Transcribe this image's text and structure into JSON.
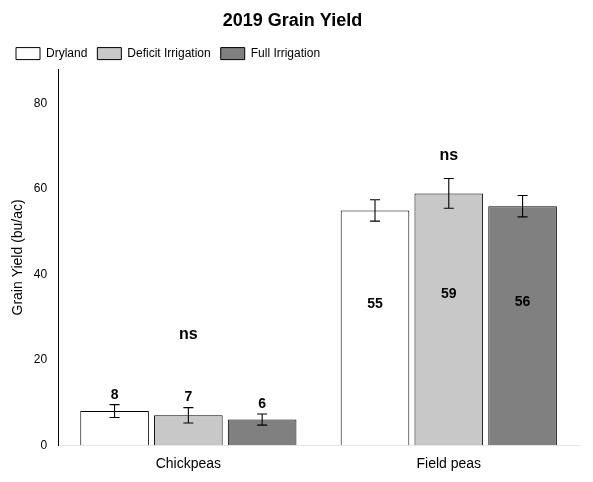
{
  "chart_data": {
    "type": "bar",
    "title": "2019 Grain Yield",
    "ylabel": "Grain Yield (bu/ac)",
    "categories": [
      "Chickpeas",
      "Field peas"
    ],
    "series": [
      {
        "name": "Dryland",
        "color": "#ffffff",
        "values": [
          8,
          55
        ],
        "errors": [
          1.5,
          2.5
        ]
      },
      {
        "name": "Deficit Irrigation",
        "color": "#c8c8c8",
        "values": [
          7,
          59
        ],
        "errors": [
          1.8,
          3.5
        ]
      },
      {
        "name": "Full Irrigation",
        "color": "#808080",
        "values": [
          6,
          56
        ],
        "errors": [
          1.3,
          2.5
        ]
      }
    ],
    "ylim": [
      0,
      88
    ],
    "yticks": [
      0,
      20,
      40,
      60,
      80
    ],
    "grid": false,
    "legend": "upper left",
    "data_labels": true,
    "annotations": [
      {
        "text": "ns",
        "category": "Chickpeas",
        "y": 24
      },
      {
        "text": "ns",
        "category": "Field peas",
        "y": 66
      }
    ]
  }
}
